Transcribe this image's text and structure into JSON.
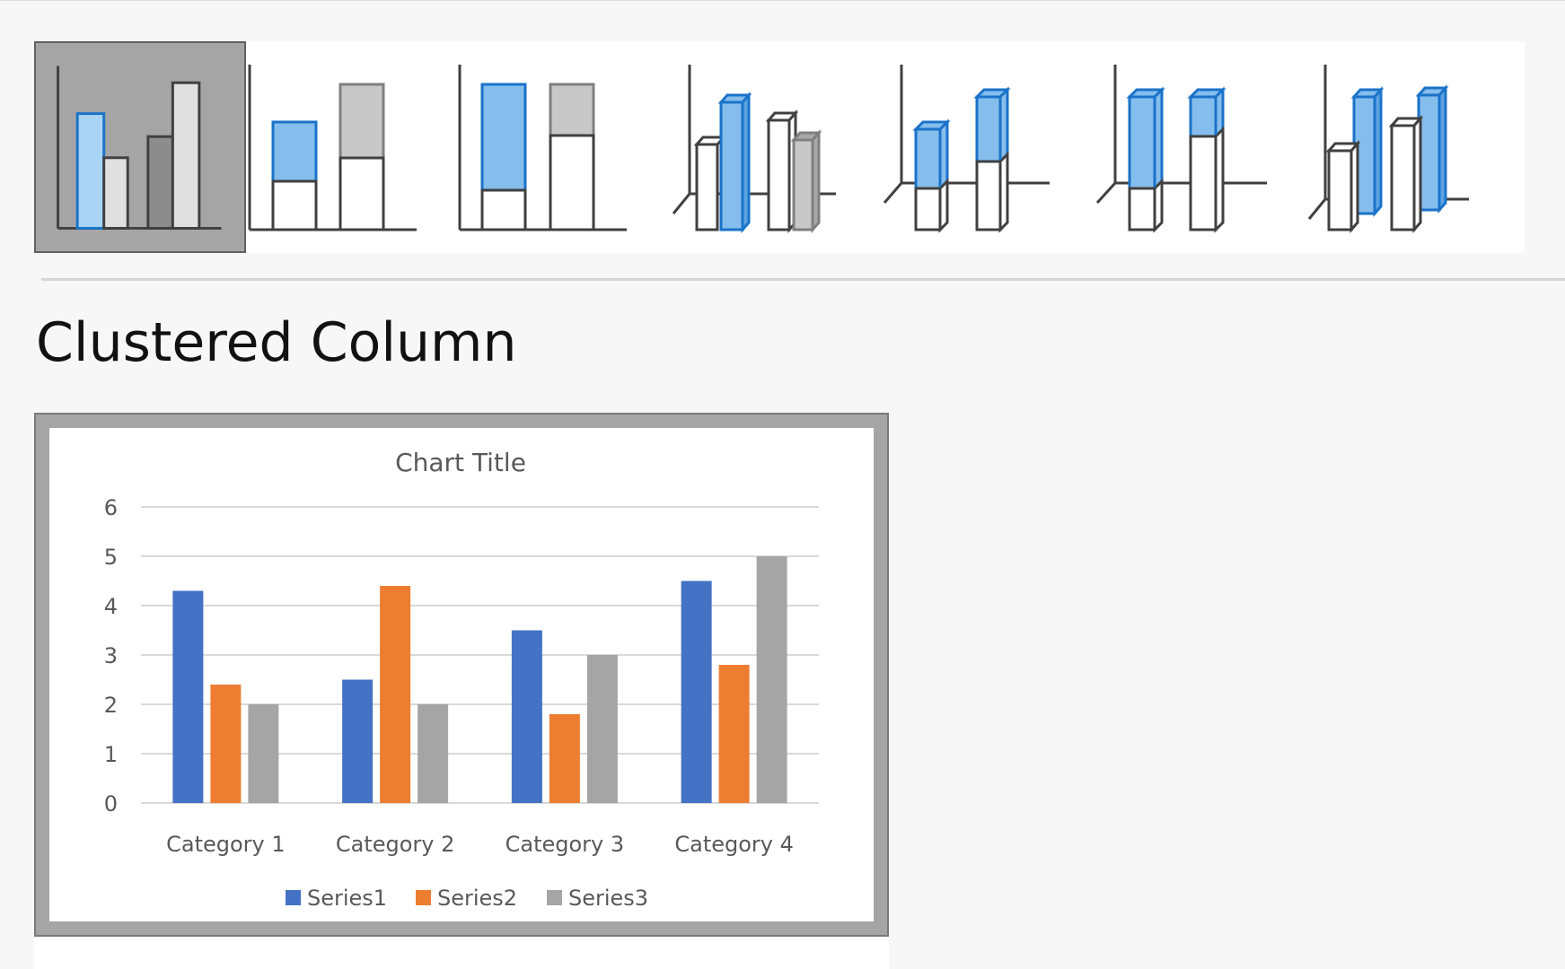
{
  "gallery": {
    "items": [
      {
        "name": "Clustered Column",
        "selected": true
      },
      {
        "name": "Stacked Column",
        "selected": false
      },
      {
        "name": "100% Stacked Column",
        "selected": false
      },
      {
        "name": "3-D Clustered Column",
        "selected": false
      },
      {
        "name": "3-D Stacked Column",
        "selected": false
      },
      {
        "name": "3-D 100% Stacked Column",
        "selected": false
      },
      {
        "name": "3-D Column",
        "selected": false
      }
    ]
  },
  "selected_type_label": "Clustered Column",
  "colors": {
    "series1": "#4472c4",
    "series2": "#ed7d31",
    "series3": "#a5a5a5",
    "icon_blue_fill": "#85bdec",
    "icon_blue_stroke": "#1a73c9",
    "selected_tile": "#a5a5a5"
  },
  "chart_data": {
    "type": "bar",
    "title": "Chart Title",
    "categories": [
      "Category 1",
      "Category 2",
      "Category 3",
      "Category 4"
    ],
    "series": [
      {
        "name": "Series1",
        "values": [
          4.3,
          2.5,
          3.5,
          4.5
        ]
      },
      {
        "name": "Series2",
        "values": [
          2.4,
          4.4,
          1.8,
          2.8
        ]
      },
      {
        "name": "Series3",
        "values": [
          2,
          2,
          3,
          5
        ]
      }
    ],
    "ylim": [
      0,
      6
    ],
    "yticks": [
      "0",
      "1",
      "2",
      "3",
      "4",
      "5",
      "6"
    ],
    "grid": true,
    "legend": "bottom"
  }
}
